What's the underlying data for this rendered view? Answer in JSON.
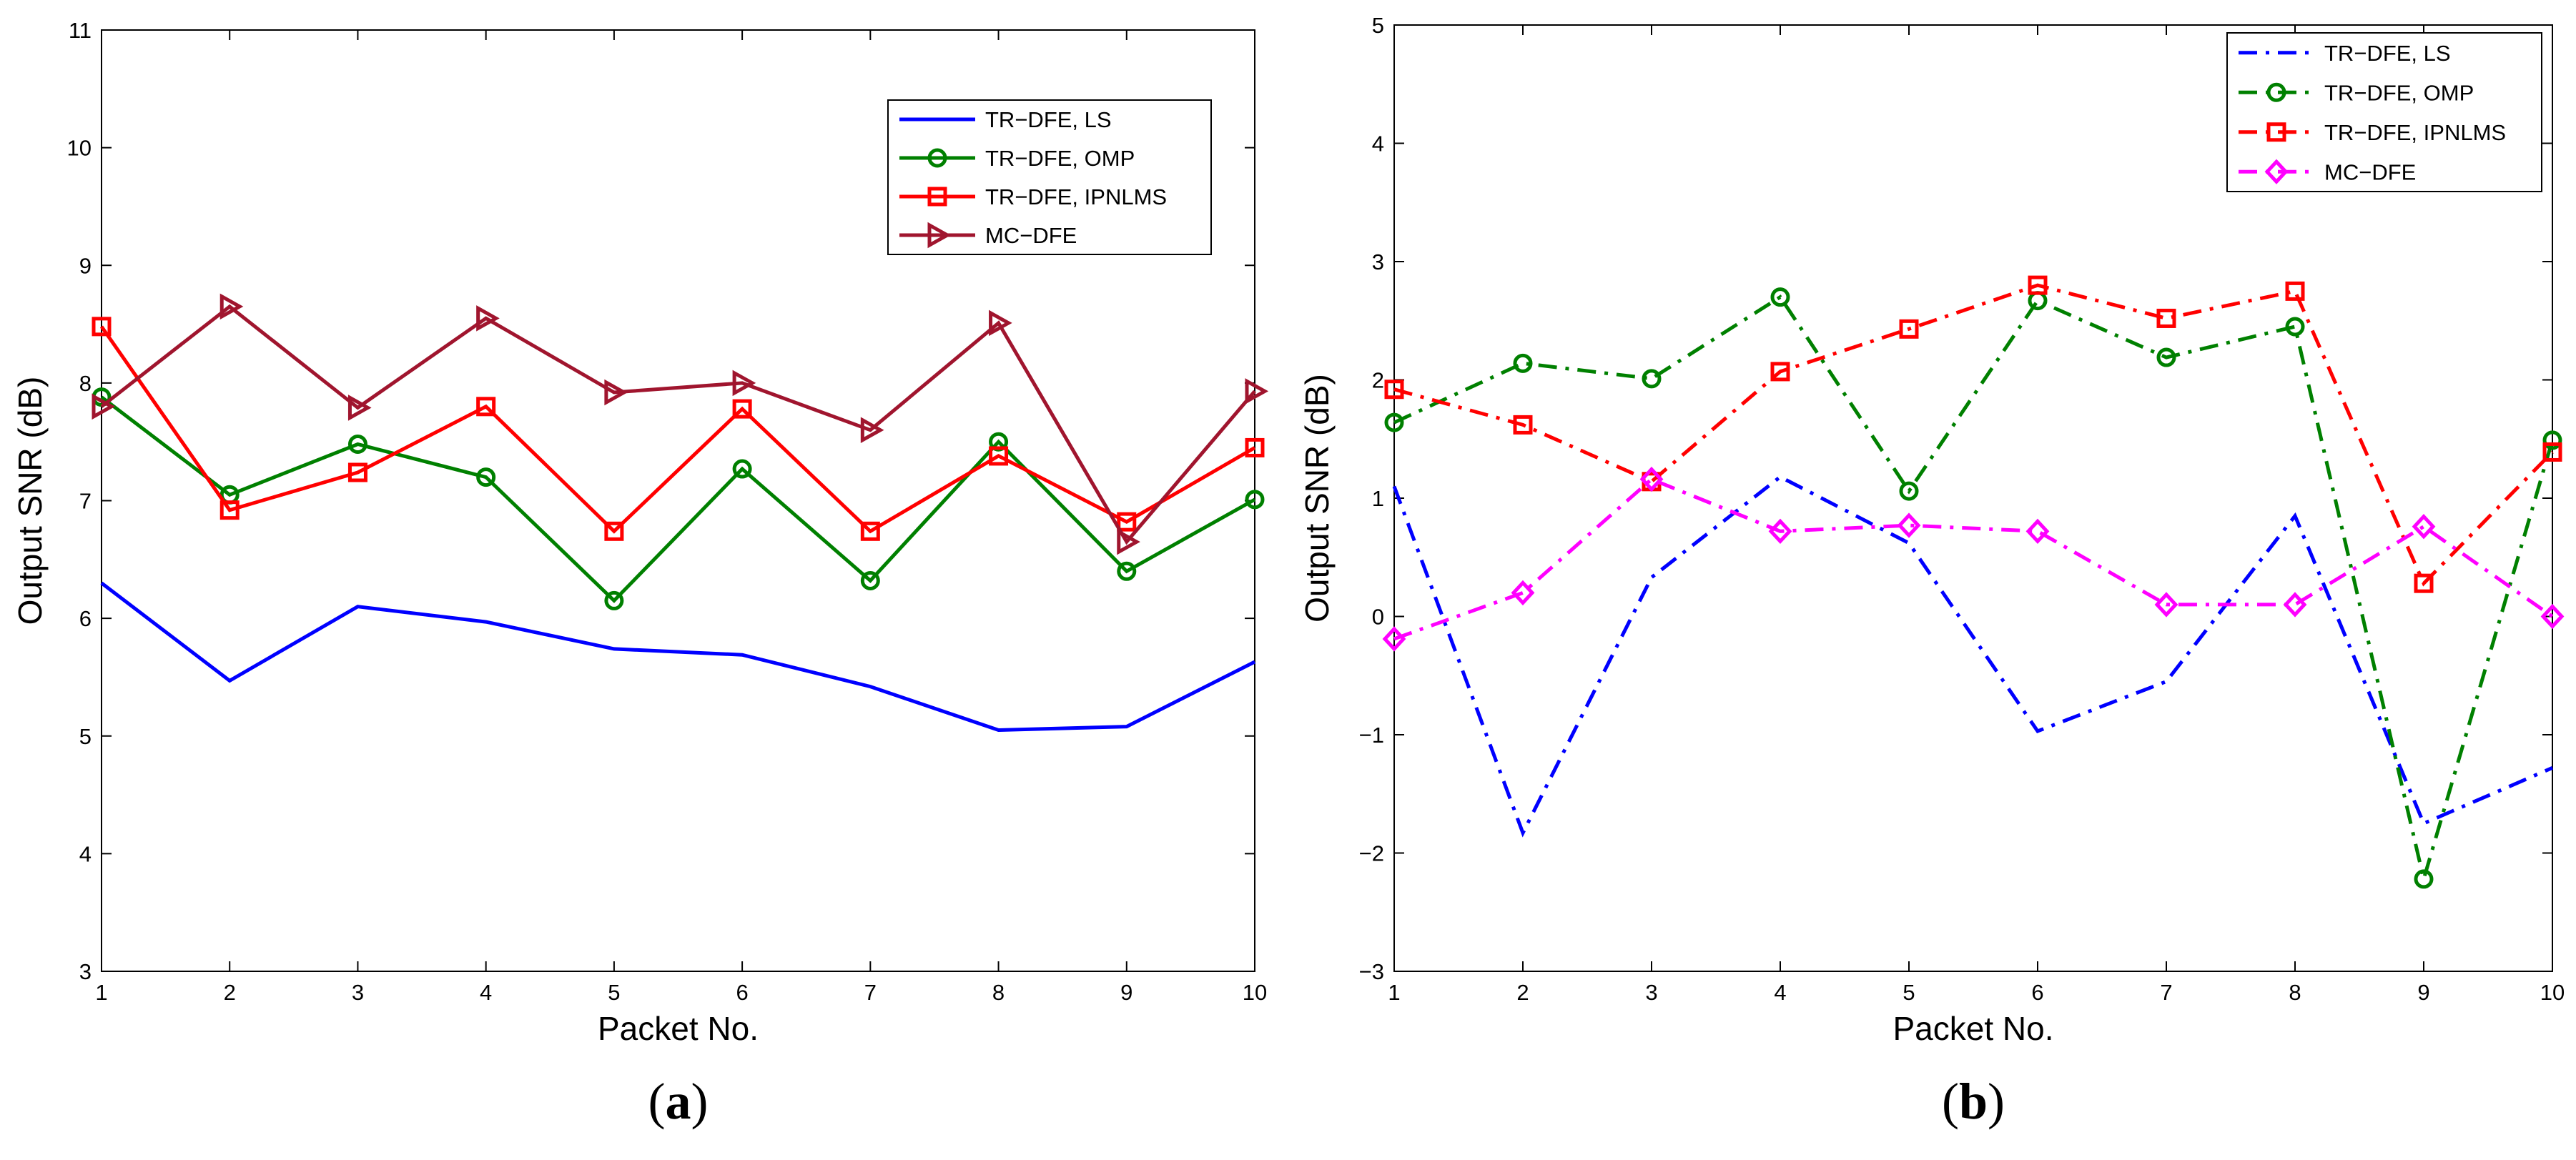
{
  "chart_data": [
    {
      "type": "line",
      "caption": "(a)",
      "caption_letter": "a",
      "xlabel": "Packet No.",
      "ylabel": "Output SNR (dB)",
      "xlim": [
        1,
        10
      ],
      "ylim": [
        3,
        11
      ],
      "xticks": [
        1,
        2,
        3,
        4,
        5,
        6,
        7,
        8,
        9,
        10
      ],
      "yticks": [
        3,
        4,
        5,
        6,
        7,
        8,
        9,
        10,
        11
      ],
      "legend_position": "top-right",
      "series": [
        {
          "name": "TR−DFE, LS",
          "color": "#0000ff",
          "dash": "solid",
          "marker": "none",
          "x": [
            1,
            2,
            3,
            4,
            5,
            6,
            7,
            8,
            9,
            10
          ],
          "values": [
            6.3,
            5.47,
            6.1,
            5.97,
            5.74,
            5.69,
            5.42,
            5.05,
            5.08,
            5.63
          ]
        },
        {
          "name": "TR−DFE, OMP",
          "color": "#008000",
          "dash": "solid",
          "marker": "circle",
          "x": [
            1,
            2,
            3,
            4,
            5,
            6,
            7,
            8,
            9,
            10
          ],
          "values": [
            7.88,
            7.05,
            7.48,
            7.2,
            6.15,
            7.27,
            6.32,
            7.5,
            6.4,
            7.01
          ]
        },
        {
          "name": "TR−DFE, IPNLMS",
          "color": "#ff0000",
          "dash": "solid",
          "marker": "square",
          "x": [
            1,
            2,
            3,
            4,
            5,
            6,
            7,
            8,
            9,
            10
          ],
          "values": [
            8.48,
            6.92,
            7.24,
            7.8,
            6.74,
            7.78,
            6.74,
            7.38,
            6.82,
            7.45
          ]
        },
        {
          "name": "MC−DFE",
          "color": "#a0152e",
          "dash": "solid",
          "marker": "triangle-right",
          "x": [
            1,
            2,
            3,
            4,
            5,
            6,
            7,
            8,
            9,
            10
          ],
          "values": [
            7.8,
            8.65,
            7.79,
            8.55,
            7.92,
            8.0,
            7.6,
            8.51,
            6.65,
            7.93
          ]
        }
      ]
    },
    {
      "type": "line",
      "caption": "(b)",
      "caption_letter": "b",
      "xlabel": "Packet No.",
      "ylabel": "Output SNR (dB)",
      "xlim": [
        1,
        10
      ],
      "ylim": [
        -3,
        5
      ],
      "xticks": [
        1,
        2,
        3,
        4,
        5,
        6,
        7,
        8,
        9,
        10
      ],
      "yticks": [
        -3,
        -2,
        -1,
        0,
        1,
        2,
        3,
        4,
        5
      ],
      "ytick_labels": [
        "−3",
        "−2",
        "−1",
        "0",
        "1",
        "2",
        "3",
        "4",
        "5"
      ],
      "legend_position": "top-right",
      "series": [
        {
          "name": "TR−DFE, LS",
          "color": "#0000ff",
          "dash": "dashdot",
          "marker": "none",
          "x": [
            1,
            2,
            3,
            4,
            5,
            6,
            7,
            8,
            9,
            10
          ],
          "values": [
            1.1,
            -1.83,
            0.33,
            1.18,
            0.62,
            -0.97,
            -0.55,
            0.85,
            -1.75,
            -1.28
          ]
        },
        {
          "name": "TR−DFE, OMP",
          "color": "#008000",
          "dash": "dashdot",
          "marker": "circle",
          "x": [
            1,
            2,
            3,
            4,
            5,
            6,
            7,
            8,
            9,
            10
          ],
          "values": [
            1.64,
            2.14,
            2.01,
            2.7,
            1.06,
            2.67,
            2.19,
            2.45,
            -2.22,
            1.49
          ]
        },
        {
          "name": "TR−DFE, IPNLMS",
          "color": "#ff0000",
          "dash": "dashdot",
          "marker": "square",
          "x": [
            1,
            2,
            3,
            4,
            5,
            6,
            7,
            8,
            9,
            10
          ],
          "values": [
            1.92,
            1.62,
            1.14,
            2.07,
            2.43,
            2.8,
            2.52,
            2.75,
            0.28,
            1.39
          ]
        },
        {
          "name": "MC−DFE",
          "color": "#ff00ff",
          "dash": "dashdot",
          "marker": "diamond",
          "x": [
            1,
            2,
            3,
            4,
            5,
            6,
            7,
            8,
            9,
            10
          ],
          "values": [
            -0.19,
            0.2,
            1.16,
            0.72,
            0.77,
            0.72,
            0.1,
            0.1,
            0.76,
            0.0
          ]
        }
      ]
    }
  ]
}
